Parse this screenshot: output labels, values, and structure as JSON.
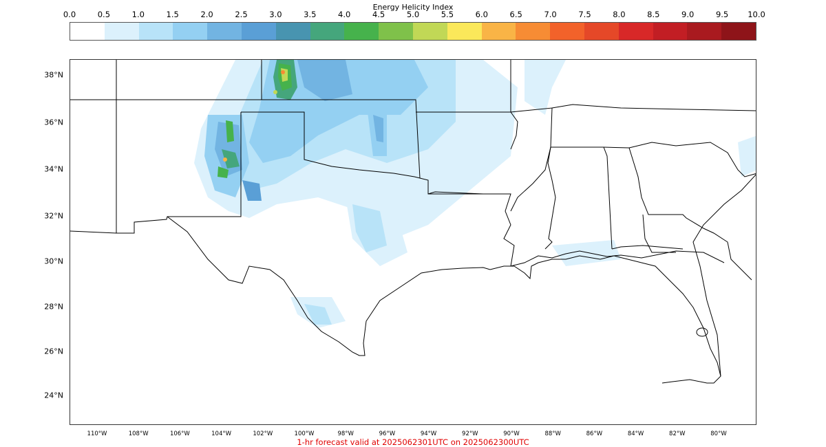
{
  "colorbar": {
    "title": "Energy Helicity Index",
    "ticks": [
      "0.0",
      "0.5",
      "1.0",
      "1.5",
      "2.0",
      "2.5",
      "3.0",
      "3.5",
      "4.0",
      "4.5",
      "5.0",
      "5.5",
      "6.0",
      "6.5",
      "7.0",
      "7.5",
      "8.0",
      "8.5",
      "9.0",
      "9.5",
      "10.0"
    ],
    "colors": [
      "#ffffff",
      "#dcf1fc",
      "#b8e3f8",
      "#94d0f2",
      "#72b4e2",
      "#5a9fd6",
      "#4894b0",
      "#45a67c",
      "#46b24c",
      "#7fc14a",
      "#c1d856",
      "#fbe85a",
      "#f9b446",
      "#f78c34",
      "#f2622a",
      "#e54828",
      "#d82828",
      "#c21e24",
      "#a91a1f",
      "#8e1419"
    ]
  },
  "map": {
    "lat_labels": [
      "38°N",
      "36°N",
      "34°N",
      "32°N",
      "30°N",
      "28°N",
      "26°N",
      "24°N"
    ],
    "lon_labels": [
      "110°W",
      "108°W",
      "106°W",
      "104°W",
      "102°W",
      "100°W",
      "98°W",
      "96°W",
      "94°W",
      "92°W",
      "90°W",
      "88°W",
      "86°W",
      "84°W",
      "82°W",
      "80°W"
    ]
  },
  "caption": "1-hr forecast valid at 2025062301UTC on 2025062300UTC"
}
